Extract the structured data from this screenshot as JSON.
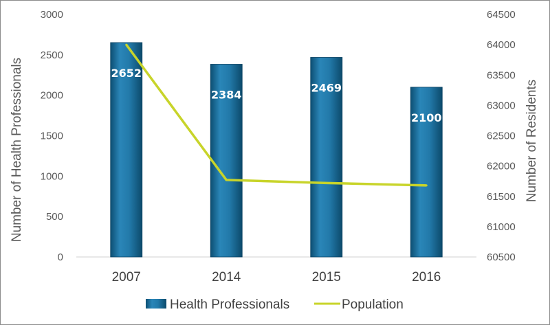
{
  "chart_data": {
    "type": "bar",
    "categories": [
      "2007",
      "2014",
      "2015",
      "2016"
    ],
    "series": [
      {
        "name": "Health Professionals",
        "type": "bar",
        "axis": "left",
        "values": [
          2652,
          2384,
          2469,
          2100
        ],
        "color": "#1f6f99",
        "data_labels": [
          "2652",
          "2384",
          "2469",
          "2100"
        ]
      },
      {
        "name": "Population",
        "type": "line",
        "axis": "right",
        "values": [
          64000,
          61770,
          61720,
          61680
        ],
        "color": "#c8d42a"
      }
    ],
    "ylabel": "Number of Health Professionals",
    "y2label": "Number of Residents",
    "ylim": [
      0,
      3000
    ],
    "y2lim": [
      60500,
      64500
    ],
    "yticks": [
      "0",
      "500",
      "1000",
      "1500",
      "2000",
      "2500",
      "3000"
    ],
    "y2ticks": [
      "60500",
      "61000",
      "61500",
      "62000",
      "62500",
      "63000",
      "63500",
      "64000",
      "64500"
    ],
    "grid": false,
    "legend": "bottom-center"
  }
}
